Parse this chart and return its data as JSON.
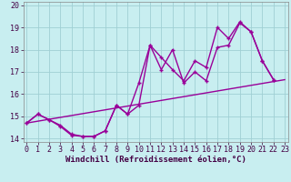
{
  "background_color": "#c8eef0",
  "grid_color": "#a0cfd4",
  "line_color": "#990099",
  "xlim": [
    -0.3,
    23.3
  ],
  "ylim": [
    13.85,
    20.15
  ],
  "xlabel": "Windchill (Refroidissement éolien,°C)",
  "xlabel_fontsize": 6.5,
  "xticks": [
    0,
    1,
    2,
    3,
    4,
    5,
    6,
    7,
    8,
    9,
    10,
    11,
    12,
    13,
    14,
    15,
    16,
    17,
    18,
    19,
    20,
    21,
    22,
    23
  ],
  "yticks": [
    14,
    15,
    16,
    17,
    18,
    19,
    20
  ],
  "tick_fontsize": 6,
  "line1_x": [
    0,
    1,
    2,
    3,
    4,
    5,
    6,
    7,
    8,
    9,
    10,
    11,
    12,
    13,
    14,
    15,
    16,
    17,
    18,
    19,
    20,
    21,
    22
  ],
  "line1_y": [
    14.7,
    15.1,
    14.85,
    14.6,
    14.2,
    14.1,
    14.1,
    14.35,
    15.5,
    15.1,
    16.5,
    18.2,
    17.1,
    18.0,
    16.5,
    17.0,
    16.6,
    18.1,
    18.2,
    19.2,
    18.8,
    17.5,
    16.65
  ],
  "line2_x": [
    0,
    1,
    2,
    3,
    4,
    5,
    6,
    7,
    8,
    9,
    10,
    11,
    12,
    13,
    14,
    15,
    16,
    17,
    18,
    19,
    20,
    21,
    22
  ],
  "line2_y": [
    14.7,
    15.1,
    14.85,
    14.55,
    14.15,
    14.1,
    14.1,
    14.35,
    15.5,
    15.1,
    15.5,
    18.2,
    17.65,
    17.1,
    16.6,
    17.5,
    17.2,
    19.0,
    18.5,
    19.25,
    18.8,
    17.5,
    16.65
  ],
  "line3_x": [
    0,
    23
  ],
  "line3_y": [
    14.7,
    16.65
  ]
}
